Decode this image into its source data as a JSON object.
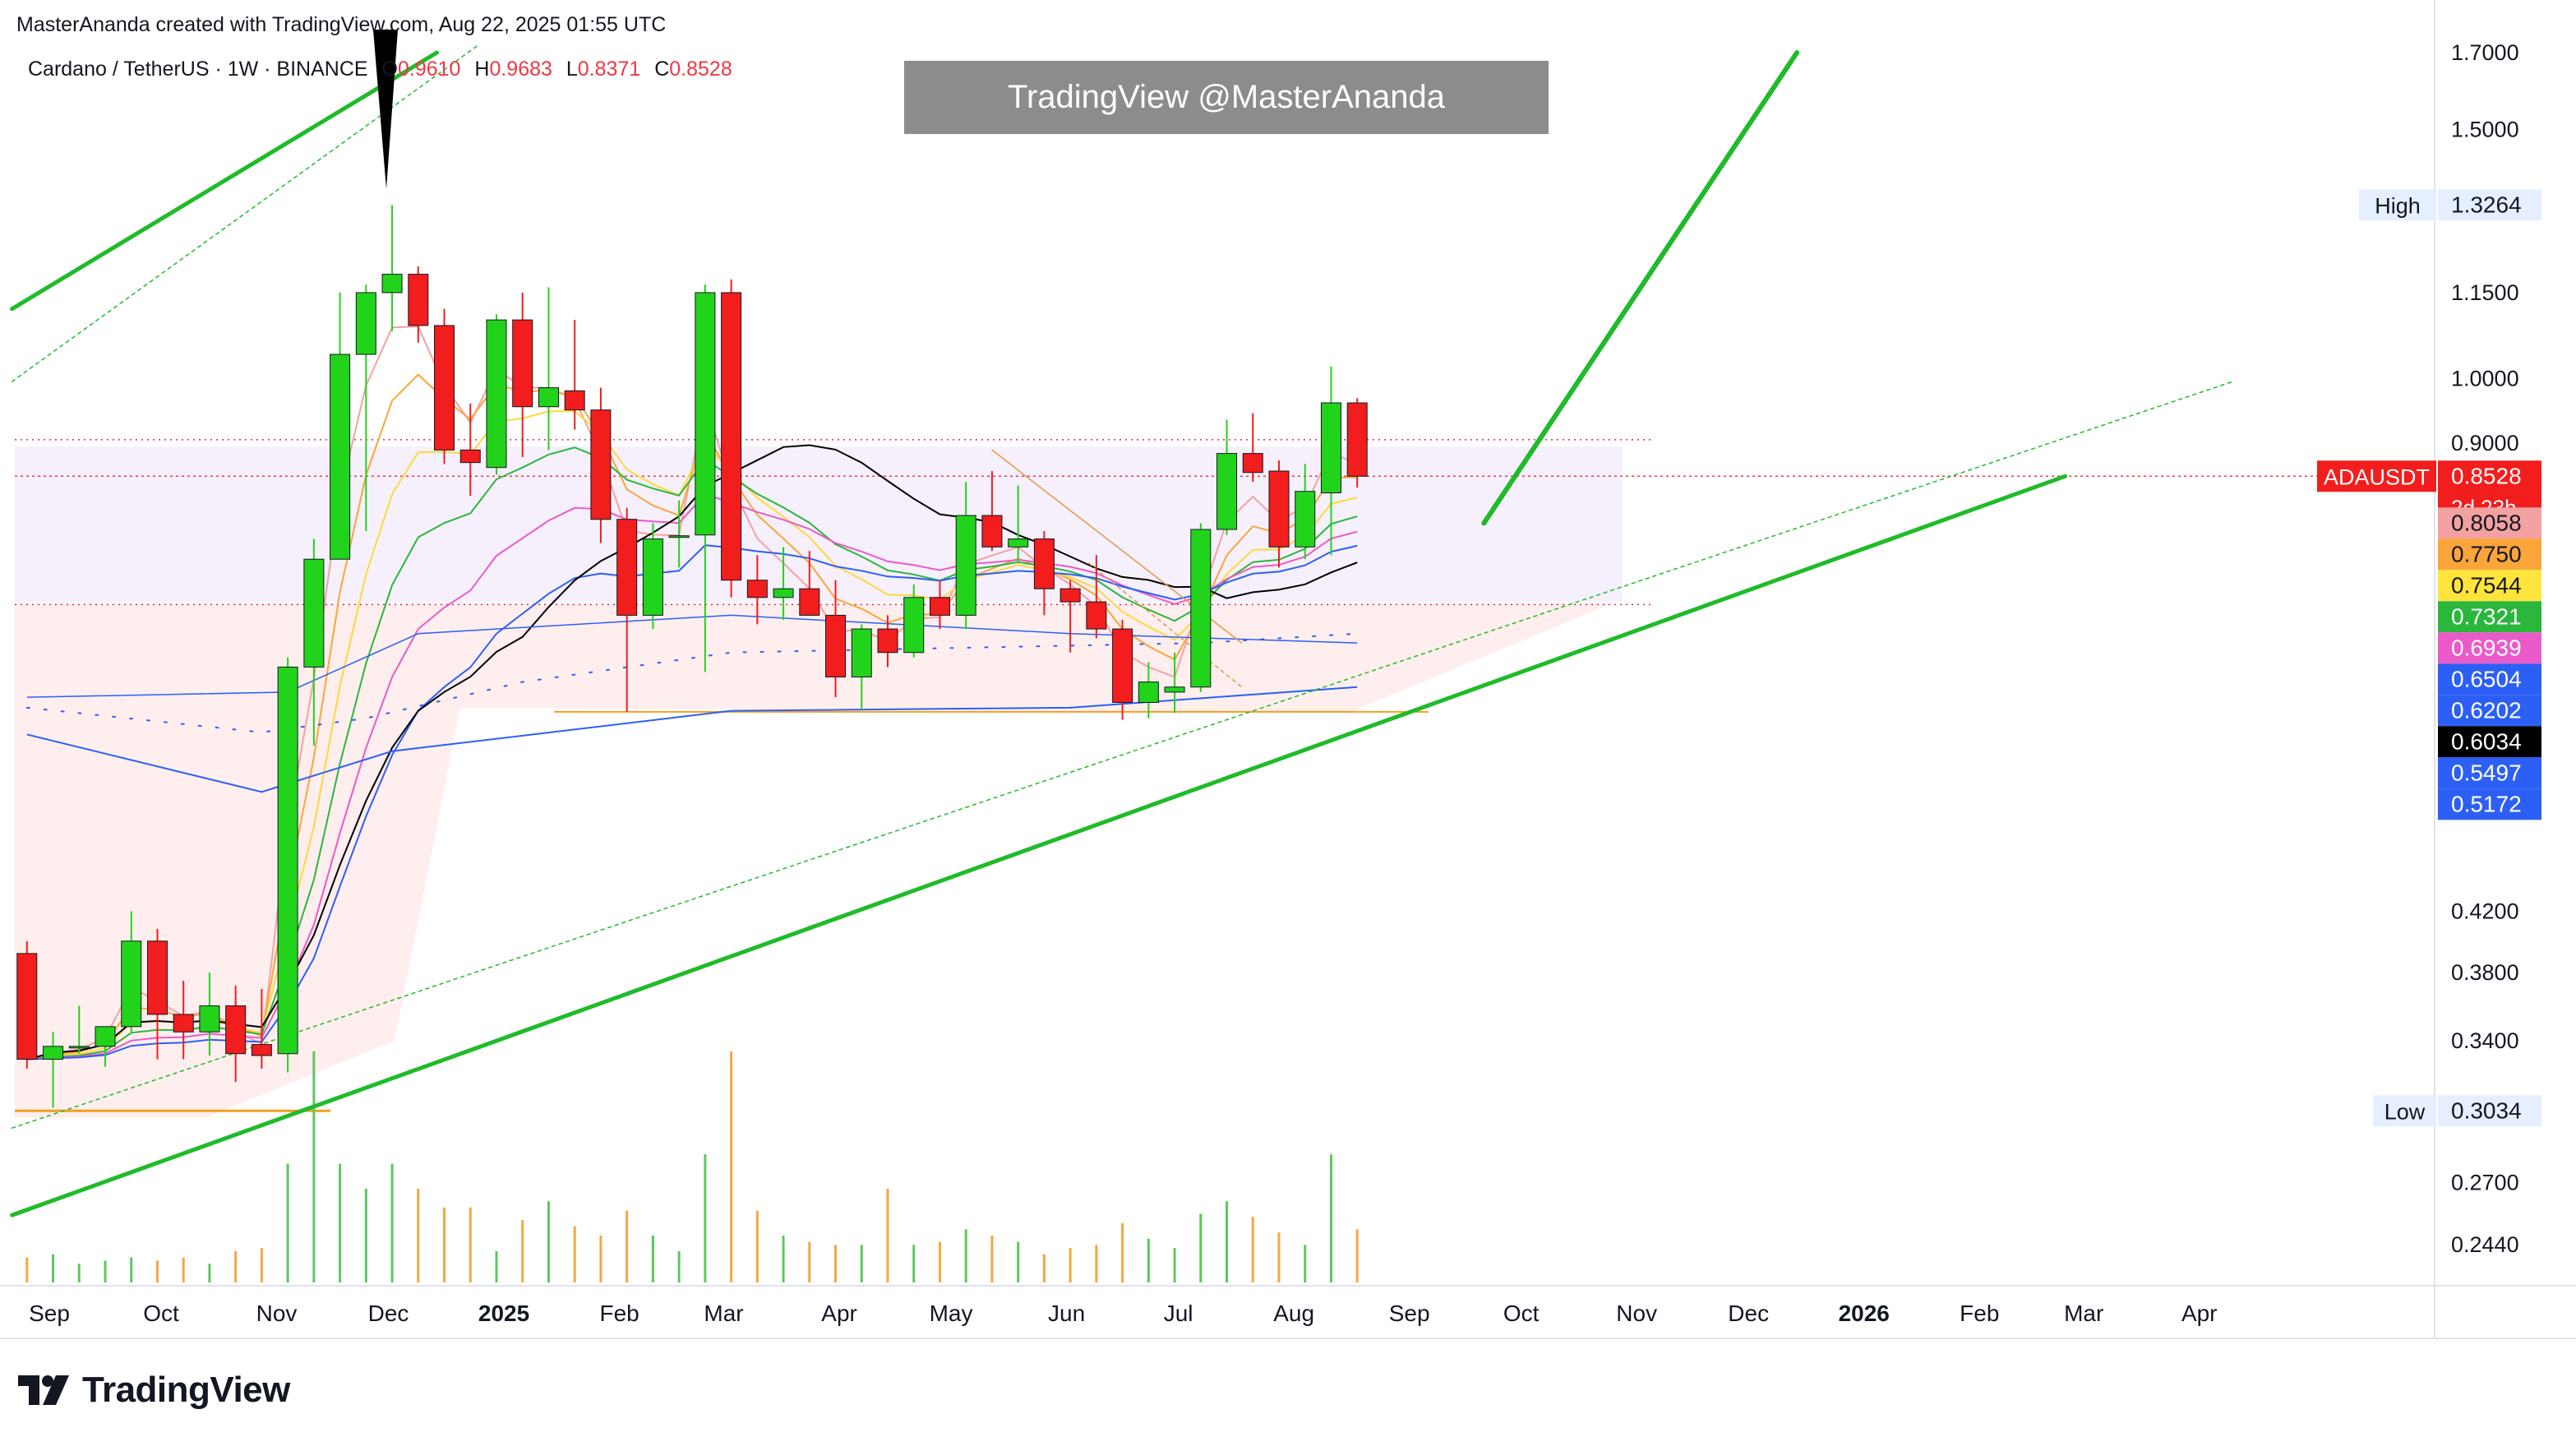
{
  "header": {
    "credit": "MasterAnanda created with TradingView.com, Aug 22, 2025 01:55 UTC"
  },
  "legend": {
    "symbol": "Cardano / TetherUS · 1W · BINANCE",
    "o_label": "O",
    "o_value": "0.9610",
    "h_label": "H",
    "h_value": "0.9683",
    "l_label": "L",
    "l_value": "0.8371",
    "c_label": "C",
    "c_value": "0.8528"
  },
  "watermark": "TradingView @MasterAnanda",
  "brand": "TradingView",
  "colors": {
    "up": "#22d31b",
    "down": "#f21d1d",
    "trendline": "#1fbb2a",
    "price_line": "#f23645"
  },
  "chart_data": {
    "type": "candlestick",
    "interval": "1W",
    "symbol": "ADAUSDT",
    "y_scale": "log",
    "y_ticks": [
      "1.7000",
      "1.5000",
      "1.1500",
      "1.0000",
      "0.9000",
      "0.4200",
      "0.3800",
      "0.3400",
      "0.2700",
      "0.2440"
    ],
    "x_ticks": [
      {
        "label": "Sep",
        "date": "2024-09-01",
        "bold": false
      },
      {
        "label": "Oct",
        "date": "2024-10-01",
        "bold": false
      },
      {
        "label": "Nov",
        "date": "2024-11-01",
        "bold": false
      },
      {
        "label": "Dec",
        "date": "2024-12-01",
        "bold": false
      },
      {
        "label": "2025",
        "date": "2025-01-01",
        "bold": true
      },
      {
        "label": "Feb",
        "date": "2025-02-01",
        "bold": false
      },
      {
        "label": "Mar",
        "date": "2025-03-01",
        "bold": false
      },
      {
        "label": "Apr",
        "date": "2025-04-01",
        "bold": false
      },
      {
        "label": "May",
        "date": "2025-05-01",
        "bold": false
      },
      {
        "label": "Jun",
        "date": "2025-06-01",
        "bold": false
      },
      {
        "label": "Jul",
        "date": "2025-07-01",
        "bold": false
      },
      {
        "label": "Aug",
        "date": "2025-08-01",
        "bold": false
      },
      {
        "label": "Sep",
        "date": "2025-09-01",
        "bold": false
      },
      {
        "label": "Oct",
        "date": "2025-10-01",
        "bold": false
      },
      {
        "label": "Nov",
        "date": "2025-11-01",
        "bold": false
      },
      {
        "label": "Dec",
        "date": "2025-12-01",
        "bold": false
      },
      {
        "label": "2026",
        "date": "2026-01-01",
        "bold": true
      },
      {
        "label": "Feb",
        "date": "2026-02-01",
        "bold": false
      },
      {
        "label": "Mar",
        "date": "2026-03-01",
        "bold": false
      },
      {
        "label": "Apr",
        "date": "2026-04-01",
        "bold": false
      }
    ],
    "candles": [
      {
        "date": "2024-08-26",
        "o": 0.392,
        "h": 0.4,
        "l": 0.325,
        "c": 0.33
      },
      {
        "date": "2024-09-02",
        "o": 0.33,
        "h": 0.345,
        "l": 0.305,
        "c": 0.337
      },
      {
        "date": "2024-09-09",
        "o": 0.337,
        "h": 0.36,
        "l": 0.333,
        "c": 0.337
      },
      {
        "date": "2024-09-16",
        "o": 0.337,
        "h": 0.345,
        "l": 0.326,
        "c": 0.348
      },
      {
        "date": "2024-09-23",
        "o": 0.348,
        "h": 0.42,
        "l": 0.345,
        "c": 0.4
      },
      {
        "date": "2024-09-30",
        "o": 0.4,
        "h": 0.408,
        "l": 0.33,
        "c": 0.355
      },
      {
        "date": "2024-10-07",
        "o": 0.355,
        "h": 0.375,
        "l": 0.33,
        "c": 0.345
      },
      {
        "date": "2024-10-14",
        "o": 0.345,
        "h": 0.38,
        "l": 0.332,
        "c": 0.36
      },
      {
        "date": "2024-10-21",
        "o": 0.36,
        "h": 0.372,
        "l": 0.318,
        "c": 0.333
      },
      {
        "date": "2024-10-28",
        "o": 0.338,
        "h": 0.37,
        "l": 0.325,
        "c": 0.332
      },
      {
        "date": "2024-11-04",
        "o": 0.333,
        "h": 0.635,
        "l": 0.323,
        "c": 0.625
      },
      {
        "date": "2024-11-11",
        "o": 0.625,
        "h": 0.77,
        "l": 0.55,
        "c": 0.745
      },
      {
        "date": "2024-11-18",
        "o": 0.745,
        "h": 1.15,
        "l": 0.745,
        "c": 1.04
      },
      {
        "date": "2024-11-25",
        "o": 1.04,
        "h": 1.165,
        "l": 0.78,
        "c": 1.15
      },
      {
        "date": "2024-12-02",
        "o": 1.15,
        "h": 1.3264,
        "l": 1.08,
        "c": 1.185
      },
      {
        "date": "2024-12-09",
        "o": 1.185,
        "h": 1.2,
        "l": 1.06,
        "c": 1.09
      },
      {
        "date": "2024-12-16",
        "o": 1.09,
        "h": 1.12,
        "l": 0.87,
        "c": 0.89
      },
      {
        "date": "2024-12-23",
        "o": 0.89,
        "h": 0.96,
        "l": 0.826,
        "c": 0.872
      },
      {
        "date": "2024-12-30",
        "o": 0.865,
        "h": 1.11,
        "l": 0.855,
        "c": 1.1
      },
      {
        "date": "2025-01-06",
        "o": 1.1,
        "h": 1.15,
        "l": 0.88,
        "c": 0.955
      },
      {
        "date": "2025-01-13",
        "o": 0.955,
        "h": 1.16,
        "l": 0.89,
        "c": 0.985
      },
      {
        "date": "2025-01-20",
        "o": 0.98,
        "h": 1.1,
        "l": 0.92,
        "c": 0.95
      },
      {
        "date": "2025-01-27",
        "o": 0.95,
        "h": 0.985,
        "l": 0.765,
        "c": 0.795
      },
      {
        "date": "2025-02-03",
        "o": 0.795,
        "h": 0.81,
        "l": 0.5811,
        "c": 0.68
      },
      {
        "date": "2025-02-10",
        "o": 0.68,
        "h": 0.79,
        "l": 0.665,
        "c": 0.77
      },
      {
        "date": "2025-02-17",
        "o": 0.772,
        "h": 0.82,
        "l": 0.735,
        "c": 0.774
      },
      {
        "date": "2025-02-24",
        "o": 0.775,
        "h": 1.165,
        "l": 0.62,
        "c": 1.15
      },
      {
        "date": "2025-03-03",
        "o": 1.15,
        "h": 1.175,
        "l": 0.7,
        "c": 0.72
      },
      {
        "date": "2025-03-10",
        "o": 0.72,
        "h": 0.75,
        "l": 0.67,
        "c": 0.7
      },
      {
        "date": "2025-03-17",
        "o": 0.7,
        "h": 0.76,
        "l": 0.675,
        "c": 0.71
      },
      {
        "date": "2025-03-24",
        "o": 0.71,
        "h": 0.755,
        "l": 0.69,
        "c": 0.68
      },
      {
        "date": "2025-03-31",
        "o": 0.68,
        "h": 0.72,
        "l": 0.595,
        "c": 0.615
      },
      {
        "date": "2025-04-07",
        "o": 0.615,
        "h": 0.67,
        "l": 0.584,
        "c": 0.665
      },
      {
        "date": "2025-04-14",
        "o": 0.665,
        "h": 0.68,
        "l": 0.625,
        "c": 0.64
      },
      {
        "date": "2025-04-21",
        "o": 0.64,
        "h": 0.715,
        "l": 0.635,
        "c": 0.7
      },
      {
        "date": "2025-04-28",
        "o": 0.7,
        "h": 0.72,
        "l": 0.665,
        "c": 0.68
      },
      {
        "date": "2025-05-05",
        "o": 0.68,
        "h": 0.845,
        "l": 0.665,
        "c": 0.8
      },
      {
        "date": "2025-05-12",
        "o": 0.8,
        "h": 0.86,
        "l": 0.755,
        "c": 0.76
      },
      {
        "date": "2025-05-19",
        "o": 0.76,
        "h": 0.84,
        "l": 0.74,
        "c": 0.77
      },
      {
        "date": "2025-05-26",
        "o": 0.77,
        "h": 0.78,
        "l": 0.68,
        "c": 0.71
      },
      {
        "date": "2025-06-02",
        "o": 0.71,
        "h": 0.72,
        "l": 0.64,
        "c": 0.695
      },
      {
        "date": "2025-06-09",
        "o": 0.695,
        "h": 0.75,
        "l": 0.655,
        "c": 0.665
      },
      {
        "date": "2025-06-16",
        "o": 0.665,
        "h": 0.675,
        "l": 0.5735,
        "c": 0.59
      },
      {
        "date": "2025-06-23",
        "o": 0.59,
        "h": 0.63,
        "l": 0.575,
        "c": 0.61
      },
      {
        "date": "2025-06-30",
        "o": 0.6,
        "h": 0.64,
        "l": 0.58,
        "c": 0.605
      },
      {
        "date": "2025-07-07",
        "o": 0.605,
        "h": 0.79,
        "l": 0.6,
        "c": 0.782
      },
      {
        "date": "2025-07-14",
        "o": 0.782,
        "h": 0.935,
        "l": 0.775,
        "c": 0.885
      },
      {
        "date": "2025-07-21",
        "o": 0.885,
        "h": 0.945,
        "l": 0.845,
        "c": 0.858
      },
      {
        "date": "2025-07-28",
        "o": 0.86,
        "h": 0.875,
        "l": 0.735,
        "c": 0.76
      },
      {
        "date": "2025-08-04",
        "o": 0.76,
        "h": 0.87,
        "l": 0.745,
        "c": 0.832
      },
      {
        "date": "2025-08-11",
        "o": 0.83,
        "h": 1.02,
        "l": 0.75,
        "c": 0.961
      },
      {
        "date": "2025-08-18",
        "o": 0.961,
        "h": 0.9683,
        "l": 0.8371,
        "c": 0.8528
      }
    ],
    "volume_relative": [
      0.08,
      0.09,
      0.06,
      0.07,
      0.08,
      0.07,
      0.08,
      0.06,
      0.1,
      0.11,
      0.38,
      0.74,
      0.38,
      0.3,
      0.38,
      0.3,
      0.24,
      0.24,
      0.1,
      0.2,
      0.26,
      0.18,
      0.15,
      0.23,
      0.15,
      0.1,
      0.41,
      0.74,
      0.23,
      0.15,
      0.13,
      0.12,
      0.12,
      0.3,
      0.12,
      0.13,
      0.17,
      0.15,
      0.13,
      0.09,
      0.11,
      0.12,
      0.19,
      0.14,
      0.11,
      0.22,
      0.26,
      0.21,
      0.16,
      0.12,
      0.41,
      0.17
    ],
    "price_labels": [
      {
        "text": "1.3264",
        "prefix": "High",
        "price": 1.3264,
        "bg": "#e6efff",
        "fg": "#131722"
      },
      {
        "text": "0.8528",
        "prefix": "ADAUSDT",
        "extra": "2d 23h",
        "price": 0.8528,
        "bg": "#f21d1d",
        "fg": "#ffffff"
      },
      {
        "text": "0.8058",
        "price": 0.8058,
        "bg": "#f4a1a1",
        "fg": "#131722"
      },
      {
        "text": "0.7750",
        "price": 0.775,
        "bg": "#fba53a",
        "fg": "#131722"
      },
      {
        "text": "0.7544",
        "price": 0.7544,
        "bg": "#ffe53b",
        "fg": "#131722"
      },
      {
        "text": "0.7321",
        "price": 0.7321,
        "bg": "#2bb63c",
        "fg": "#ffffff"
      },
      {
        "text": "0.6939",
        "price": 0.6939,
        "bg": "#eb5ac9",
        "fg": "#ffffff"
      },
      {
        "text": "0.6504",
        "price": 0.6504,
        "bg": "#2c5ff5",
        "fg": "#ffffff"
      },
      {
        "text": "0.6202",
        "price": 0.6202,
        "bg": "#2c5ff5",
        "fg": "#ffffff"
      },
      {
        "text": "0.6034",
        "price": 0.6034,
        "bg": "#000000",
        "fg": "#ffffff"
      },
      {
        "text": "0.5497",
        "price": 0.5497,
        "bg": "#2c5ff5",
        "fg": "#ffffff"
      },
      {
        "text": "0.5172",
        "price": 0.5172,
        "bg": "#2c5ff5",
        "fg": "#ffffff"
      },
      {
        "text": "0.3034",
        "prefix": "Low",
        "price": 0.3034,
        "bg": "#e6efff",
        "fg": "#131722"
      }
    ]
  }
}
